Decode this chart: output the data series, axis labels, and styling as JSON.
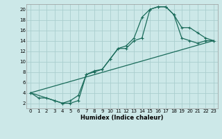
{
  "xlabel": "Humidex (Indice chaleur)",
  "ylabel": "",
  "background_color": "#cce8e8",
  "grid_color": "#aacece",
  "line_color": "#1a6b5a",
  "xlim": [
    -0.5,
    23.5
  ],
  "ylim": [
    1,
    21
  ],
  "xticks": [
    0,
    1,
    2,
    3,
    4,
    5,
    6,
    7,
    8,
    9,
    10,
    11,
    12,
    13,
    14,
    15,
    16,
    17,
    18,
    19,
    20,
    21,
    22,
    23
  ],
  "yticks": [
    2,
    4,
    6,
    8,
    10,
    12,
    14,
    16,
    18,
    20
  ],
  "line1_x": [
    0,
    1,
    2,
    3,
    4,
    5,
    6,
    7,
    8,
    9,
    10,
    11,
    12,
    13,
    14,
    15,
    16,
    17,
    18,
    19,
    20,
    21,
    22,
    23
  ],
  "line1_y": [
    4,
    3,
    3,
    2.5,
    2,
    2.5,
    3.5,
    7.5,
    8.2,
    8.5,
    10.5,
    12.5,
    13,
    14.5,
    18.5,
    20.0,
    20.5,
    20.5,
    19.0,
    14.5,
    14.0,
    13.5,
    14,
    14
  ],
  "line2_x": [
    0,
    3,
    4,
    5,
    6,
    7,
    8,
    9,
    10,
    11,
    12,
    13,
    14,
    15,
    16,
    17,
    18,
    19,
    20,
    21,
    22,
    23
  ],
  "line2_y": [
    4,
    2.5,
    2,
    2,
    2.5,
    7.5,
    8.0,
    8.5,
    10.5,
    12.5,
    12.5,
    14,
    14.5,
    20.0,
    20.5,
    20.5,
    19.0,
    16.5,
    16.5,
    15.5,
    14.5,
    14
  ],
  "line3_x": [
    0,
    23
  ],
  "line3_y": [
    4,
    14
  ]
}
